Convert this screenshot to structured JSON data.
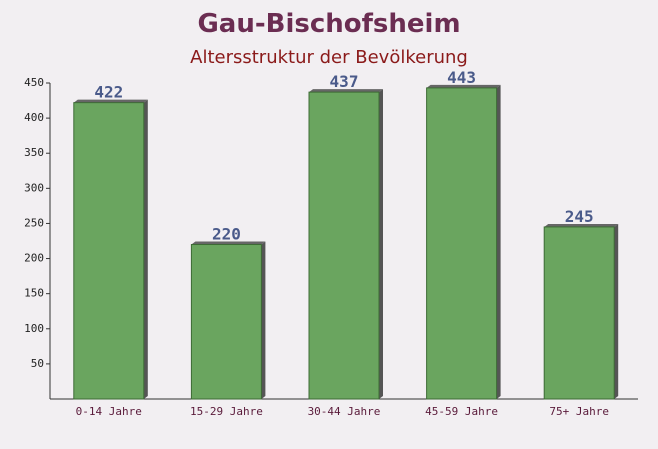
{
  "chart_data": {
    "type": "bar",
    "title": "Gau-Bischofsheim",
    "subtitle": "Altersstruktur der Bevölkerung",
    "categories": [
      "0-14 Jahre",
      "15-29 Jahre",
      "30-44 Jahre",
      "45-59 Jahre",
      "75+ Jahre"
    ],
    "values": [
      422,
      220,
      437,
      443,
      245
    ],
    "color": "#6aa55f",
    "ylim": [
      0,
      450
    ],
    "yticks": [
      50,
      100,
      150,
      200,
      250,
      300,
      350,
      400,
      450
    ]
  }
}
